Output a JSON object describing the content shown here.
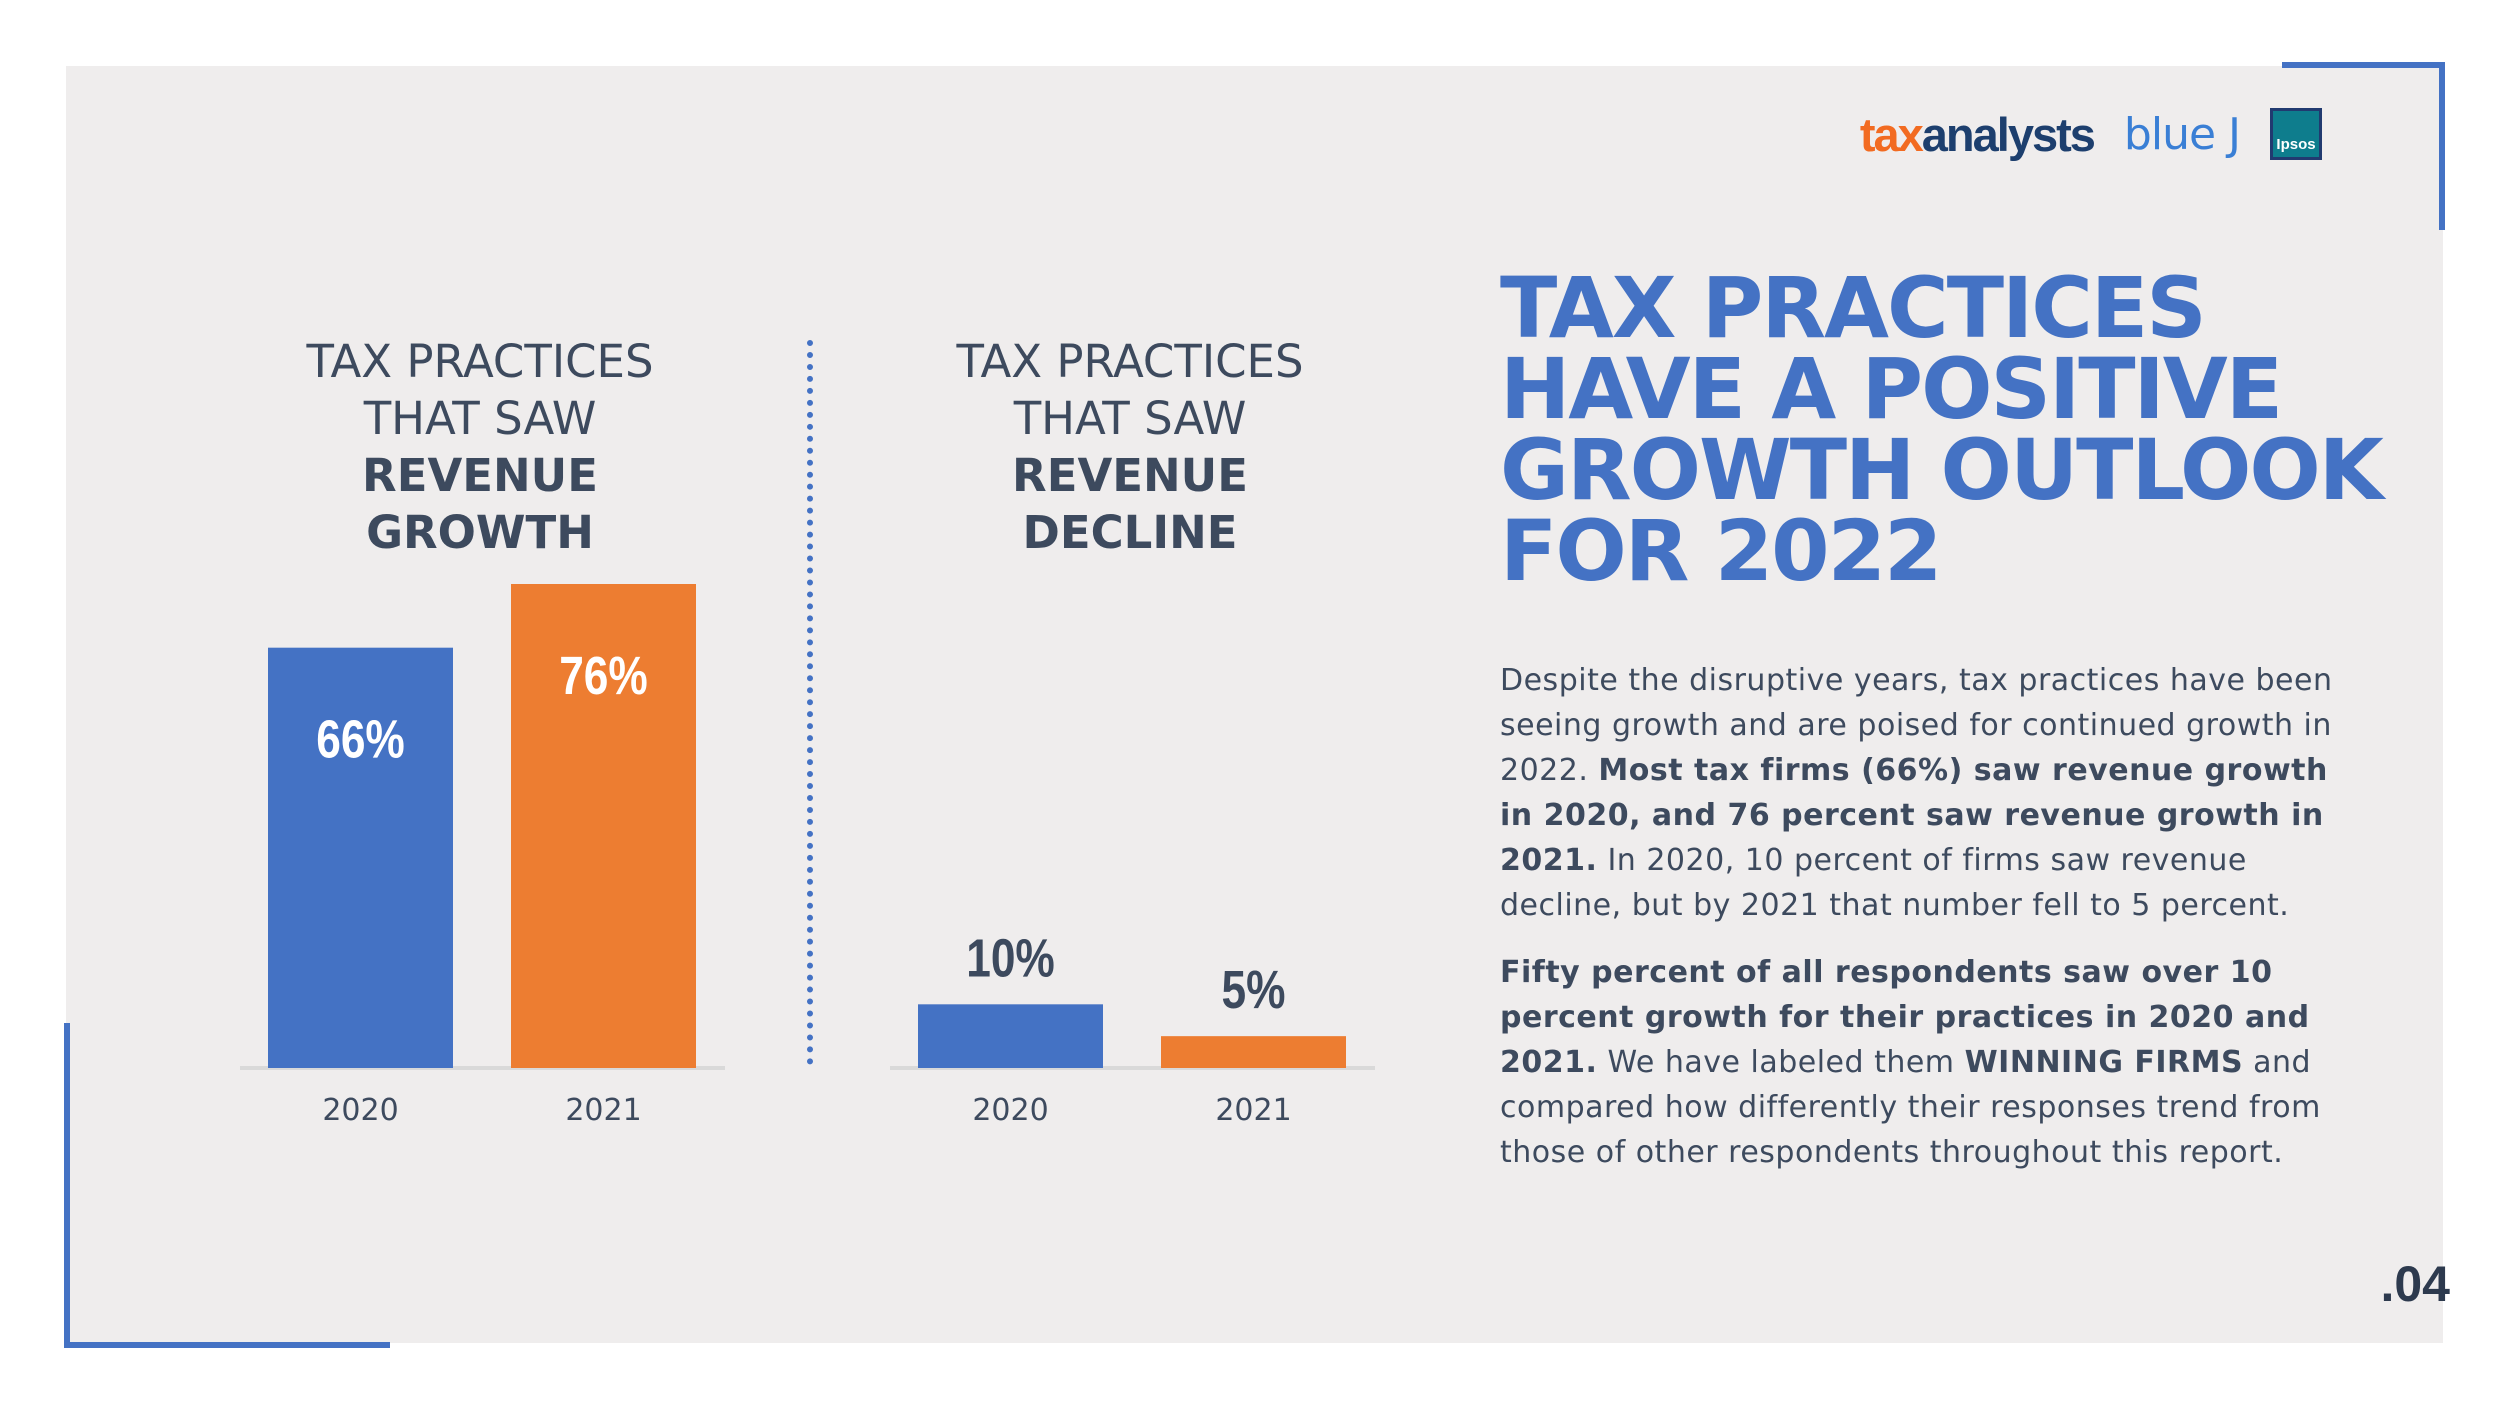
{
  "logos": {
    "taxanalysts_a": "tax",
    "taxanalysts_b": "analysts",
    "bluej": "blue J",
    "ipsos": "Ipsos"
  },
  "headline": [
    "TAX PRACTICES",
    "HAVE A POSITIVE",
    "GROWTH OUTLOOK",
    "FOR 2022"
  ],
  "paragraph1": {
    "t1": "Despite the disruptive years, tax practices have been seeing growth and are poised for continued growth in 2022. ",
    "b1": "Most tax firms (66%) saw revenue growth in 2020, and 76 percent saw revenue growth in 2021.",
    "t2": " In 2020, 10 percent of firms saw revenue decline, but by 2021 that number fell to 5 percent."
  },
  "paragraph2": {
    "b1": "Fifty percent of all respondents saw over 10 percent growth for their practices in 2020 and 2021.",
    "t1": " We have labeled them ",
    "b2": "WINNING FIRMS",
    "t2": " and compared how differently their responses trend from those of other respondents throughout this report."
  },
  "page_number": ".04",
  "colors": {
    "accent": "#4472c4",
    "orange": "#ed7d31",
    "text": "#3d4a5e"
  },
  "chart_data": [
    {
      "type": "bar",
      "title_plain": [
        "TAX PRACTICES",
        "THAT SAW"
      ],
      "title_bold": [
        "REVENUE",
        "GROWTH"
      ],
      "categories": [
        "2020",
        "2021"
      ],
      "values": [
        66,
        76
      ],
      "labels": [
        "66%",
        "76%"
      ],
      "colors": [
        "#4472c4",
        "#ed7d31"
      ],
      "ylim": [
        0,
        76
      ],
      "label_position": "inside-top"
    },
    {
      "type": "bar",
      "title_plain": [
        "TAX PRACTICES",
        "THAT SAW"
      ],
      "title_bold": [
        "REVENUE",
        "DECLINE"
      ],
      "categories": [
        "2020",
        "2021"
      ],
      "values": [
        10,
        5
      ],
      "labels": [
        "10%",
        "5%"
      ],
      "colors": [
        "#4472c4",
        "#ed7d31"
      ],
      "ylim": [
        0,
        76
      ],
      "label_position": "above"
    }
  ]
}
